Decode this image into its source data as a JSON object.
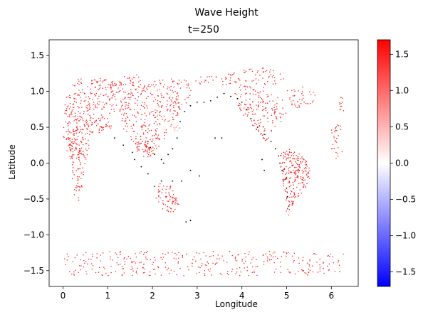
{
  "chart_data": {
    "type": "scatter",
    "title": "Wave Height",
    "subtitle": "t=250",
    "xlabel": "Longitude",
    "ylabel": "Latitude",
    "xlim": [
      -0.31,
      6.6
    ],
    "ylim": [
      -1.72,
      1.72
    ],
    "xticks": [
      "0",
      "1",
      "2",
      "3",
      "4",
      "5",
      "6"
    ],
    "yticks": [
      "−1.5",
      "−1.0",
      "−0.5",
      "0.0",
      "0.5",
      "1.0",
      "1.5"
    ],
    "grid": false,
    "colormap": "bwr",
    "colorbar": {
      "min": -1.7,
      "max": 1.7,
      "ticks": [
        "−1.5",
        "−1.0",
        "−0.5",
        "0.0",
        "0.5",
        "1.0",
        "1.5"
      ]
    },
    "colors": {
      "low": "#0000ff",
      "mid": "#ffffff",
      "high": "#ff0000",
      "zero_points": "#000000"
    },
    "regions": [
      {
        "name": "north-america",
        "polygon": [
          [
            0.02,
            0.85
          ],
          [
            0.1,
            0.95
          ],
          [
            0.3,
            1.05
          ],
          [
            0.6,
            1.15
          ],
          [
            0.8,
            1.2
          ],
          [
            1.1,
            1.15
          ],
          [
            1.2,
            1.05
          ],
          [
            1.25,
            0.9
          ],
          [
            1.2,
            0.75
          ],
          [
            1.0,
            0.62
          ],
          [
            0.8,
            0.55
          ],
          [
            0.6,
            0.5
          ],
          [
            0.4,
            0.45
          ],
          [
            0.3,
            0.3
          ],
          [
            0.2,
            0.15
          ],
          [
            0.05,
            0.2
          ],
          [
            0.0,
            0.4
          ],
          [
            0.0,
            0.6
          ]
        ],
        "value": 1.55,
        "count": 260
      },
      {
        "name": "south-america",
        "polygon": [
          [
            0.1,
            0.35
          ],
          [
            0.25,
            0.45
          ],
          [
            0.45,
            0.55
          ],
          [
            0.6,
            0.5
          ],
          [
            0.65,
            0.35
          ],
          [
            0.58,
            0.2
          ],
          [
            0.5,
            0.0
          ],
          [
            0.45,
            -0.2
          ],
          [
            0.4,
            -0.45
          ],
          [
            0.3,
            -0.6
          ],
          [
            0.25,
            -0.45
          ],
          [
            0.2,
            -0.2
          ],
          [
            0.15,
            0.0
          ],
          [
            0.08,
            0.15
          ]
        ],
        "value": 1.55,
        "count": 150
      },
      {
        "name": "central-america",
        "polygon": [
          [
            0.5,
            0.4
          ],
          [
            0.8,
            0.55
          ],
          [
            1.0,
            0.6
          ],
          [
            1.1,
            0.5
          ],
          [
            0.95,
            0.45
          ],
          [
            0.7,
            0.4
          ]
        ],
        "value": 1.5,
        "count": 30
      },
      {
        "name": "greenland",
        "polygon": [
          [
            1.0,
            1.1
          ],
          [
            1.3,
            1.2
          ],
          [
            1.7,
            1.25
          ],
          [
            1.75,
            1.1
          ],
          [
            1.6,
            0.95
          ],
          [
            1.3,
            0.95
          ],
          [
            1.1,
            1.0
          ]
        ],
        "value": 1.55,
        "count": 60
      },
      {
        "name": "asia",
        "polygon": [
          [
            1.3,
            0.9
          ],
          [
            1.6,
            1.0
          ],
          [
            2.0,
            1.15
          ],
          [
            2.4,
            1.2
          ],
          [
            2.8,
            1.15
          ],
          [
            2.9,
            1.0
          ],
          [
            2.8,
            0.85
          ],
          [
            2.6,
            0.7
          ],
          [
            2.45,
            0.55
          ],
          [
            2.3,
            0.35
          ],
          [
            2.1,
            0.2
          ],
          [
            1.9,
            0.1
          ],
          [
            1.7,
            0.15
          ],
          [
            1.5,
            0.3
          ],
          [
            1.35,
            0.45
          ],
          [
            1.25,
            0.65
          ]
        ],
        "value": 1.55,
        "count": 330
      },
      {
        "name": "southeast-asia-islands",
        "polygon": [
          [
            1.6,
            0.3
          ],
          [
            1.8,
            0.35
          ],
          [
            2.0,
            0.25
          ],
          [
            2.05,
            0.1
          ],
          [
            1.85,
            0.05
          ],
          [
            1.65,
            0.15
          ]
        ],
        "value": 1.5,
        "count": 40
      },
      {
        "name": "north-pole-band",
        "polygon": [
          [
            2.9,
            1.2
          ],
          [
            3.5,
            1.25
          ],
          [
            4.0,
            1.3
          ],
          [
            4.6,
            1.35
          ],
          [
            5.0,
            1.2
          ],
          [
            4.6,
            1.05
          ],
          [
            4.0,
            1.05
          ],
          [
            3.5,
            1.1
          ],
          [
            3.0,
            1.1
          ]
        ],
        "value": 1.55,
        "count": 90
      },
      {
        "name": "europe-africa-north",
        "polygon": [
          [
            3.8,
            1.0
          ],
          [
            4.2,
            1.05
          ],
          [
            4.6,
            1.0
          ],
          [
            4.9,
            0.9
          ],
          [
            5.0,
            0.7
          ],
          [
            4.85,
            0.55
          ],
          [
            4.7,
            0.4
          ],
          [
            4.5,
            0.3
          ],
          [
            4.3,
            0.45
          ],
          [
            4.1,
            0.6
          ],
          [
            3.9,
            0.8
          ]
        ],
        "value": 1.55,
        "count": 160
      },
      {
        "name": "upper-right-cluster",
        "polygon": [
          [
            5.0,
            1.05
          ],
          [
            5.4,
            1.1
          ],
          [
            5.7,
            1.0
          ],
          [
            5.6,
            0.85
          ],
          [
            5.3,
            0.75
          ],
          [
            5.05,
            0.8
          ]
        ],
        "value": 1.55,
        "count": 40
      },
      {
        "name": "africa",
        "polygon": [
          [
            4.85,
            0.15
          ],
          [
            5.05,
            0.2
          ],
          [
            5.25,
            0.15
          ],
          [
            5.45,
            0.05
          ],
          [
            5.55,
            -0.15
          ],
          [
            5.45,
            -0.35
          ],
          [
            5.3,
            -0.45
          ],
          [
            5.15,
            -0.55
          ],
          [
            5.05,
            -0.75
          ],
          [
            4.97,
            -0.65
          ],
          [
            4.95,
            -0.4
          ],
          [
            4.9,
            -0.2
          ],
          [
            4.85,
            0.0
          ]
        ],
        "value": 1.6,
        "count": 220
      },
      {
        "name": "australia",
        "polygon": [
          [
            2.0,
            -0.3
          ],
          [
            2.2,
            -0.28
          ],
          [
            2.4,
            -0.3
          ],
          [
            2.55,
            -0.45
          ],
          [
            2.6,
            -0.6
          ],
          [
            2.45,
            -0.7
          ],
          [
            2.3,
            -0.68
          ],
          [
            2.15,
            -0.6
          ],
          [
            2.0,
            -0.5
          ]
        ],
        "value": 1.55,
        "count": 70
      },
      {
        "name": "right-edge",
        "polygon": [
          [
            6.0,
            0.55
          ],
          [
            6.2,
            0.6
          ],
          [
            6.28,
            0.4
          ],
          [
            6.25,
            0.1
          ],
          [
            6.1,
            0.05
          ],
          [
            6.0,
            0.2
          ]
        ],
        "value": 1.55,
        "count": 30
      },
      {
        "name": "right-edge-upper",
        "polygon": [
          [
            6.15,
            1.0
          ],
          [
            6.28,
            0.95
          ],
          [
            6.28,
            0.7
          ],
          [
            6.18,
            0.7
          ]
        ],
        "value": 1.5,
        "count": 12
      },
      {
        "name": "antarctica",
        "polygon": [
          [
            0.0,
            -1.23
          ],
          [
            6.28,
            -1.23
          ],
          [
            6.28,
            -1.57
          ],
          [
            0.0,
            -1.57
          ]
        ],
        "value": 1.55,
        "count": 340
      },
      {
        "name": "upper-left-sparse",
        "polygon": [
          [
            0.2,
            1.1
          ],
          [
            0.4,
            1.2
          ],
          [
            0.5,
            1.15
          ],
          [
            0.3,
            1.05
          ]
        ],
        "value": 1.5,
        "count": 10
      },
      {
        "name": "light-patch",
        "polygon": [
          [
            2.4,
            0.45
          ],
          [
            2.55,
            0.55
          ],
          [
            2.65,
            0.5
          ],
          [
            2.55,
            0.45
          ]
        ],
        "value": 0.6,
        "count": 12
      }
    ],
    "zero_value_points": [
      [
        1.15,
        0.35
      ],
      [
        1.35,
        0.25
      ],
      [
        1.55,
        0.15
      ],
      [
        1.6,
        0.05
      ],
      [
        1.9,
        0.3
      ],
      [
        1.95,
        0.22
      ],
      [
        2.05,
        0.12
      ],
      [
        2.2,
        0.05
      ],
      [
        2.35,
        0.12
      ],
      [
        2.45,
        0.2
      ],
      [
        2.55,
        0.35
      ],
      [
        2.62,
        0.58
      ],
      [
        2.72,
        0.72
      ],
      [
        2.85,
        0.8
      ],
      [
        3.0,
        0.85
      ],
      [
        3.15,
        0.85
      ],
      [
        3.3,
        0.87
      ],
      [
        3.45,
        0.92
      ],
      [
        3.6,
        0.97
      ],
      [
        3.75,
        0.93
      ],
      [
        3.9,
        0.9
      ],
      [
        4.0,
        0.85
      ],
      [
        4.1,
        0.75
      ],
      [
        4.2,
        0.62
      ],
      [
        4.35,
        0.5
      ],
      [
        4.5,
        0.4
      ],
      [
        4.65,
        0.3
      ],
      [
        4.75,
        0.2
      ],
      [
        4.82,
        0.1
      ],
      [
        4.85,
        0.0
      ],
      [
        4.9,
        -0.1
      ],
      [
        4.98,
        -0.22
      ],
      [
        5.0,
        -0.35
      ],
      [
        5.02,
        -0.47
      ],
      [
        5.05,
        -0.6
      ],
      [
        2.2,
        -0.25
      ],
      [
        2.45,
        -0.25
      ],
      [
        2.65,
        -0.25
      ],
      [
        2.85,
        -0.1
      ],
      [
        3.05,
        -0.18
      ],
      [
        3.4,
        0.35
      ],
      [
        3.55,
        0.35
      ],
      [
        4.45,
        0.05
      ],
      [
        4.5,
        -0.1
      ],
      [
        2.75,
        -0.82
      ],
      [
        2.85,
        -0.8
      ],
      [
        1.9,
        -0.15
      ],
      [
        1.75,
        -0.05
      ],
      [
        2.25,
        0.0
      ]
    ]
  }
}
